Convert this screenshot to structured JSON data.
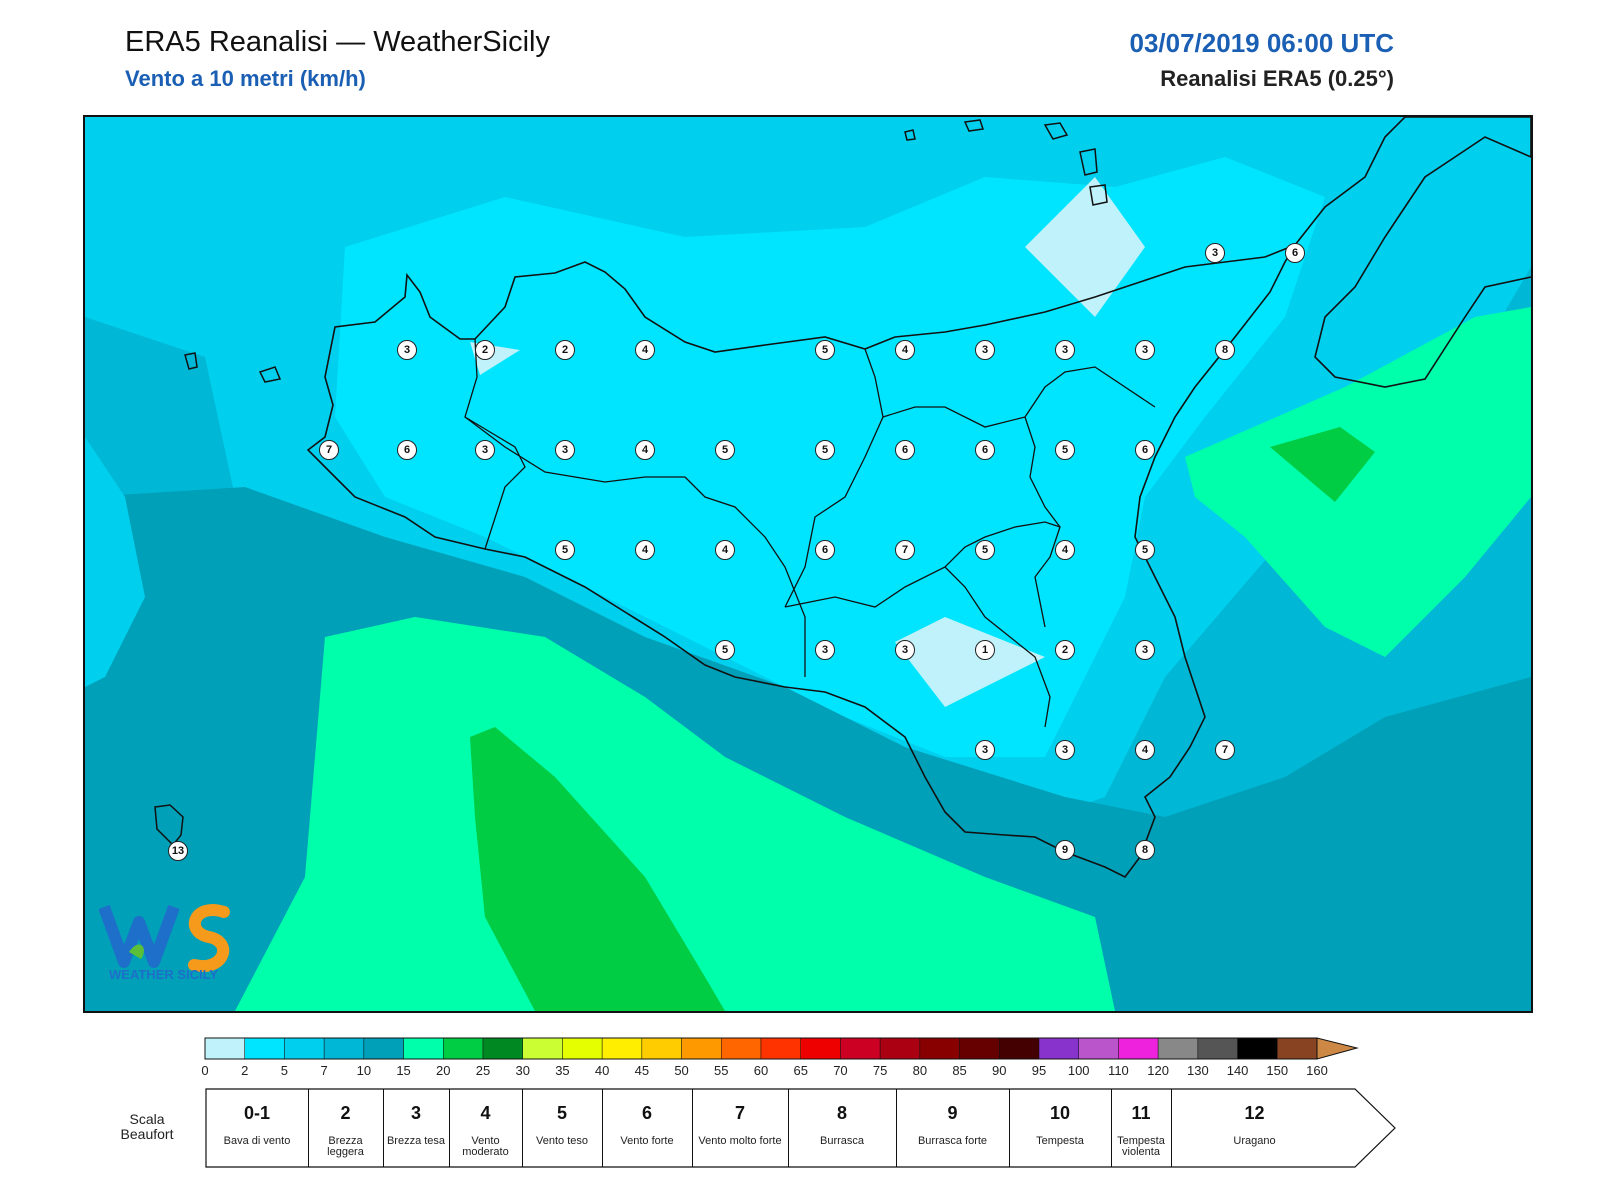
{
  "header": {
    "title": "ERA5 Reanalisi — WeatherSicily",
    "subtitle": "Vento a 10 metri (km/h)",
    "datetime": "03/07/2019 06:00 UTC",
    "source": "Reanalisi ERA5 (0.25°)"
  },
  "logo": {
    "text": "WEATHER SICILY",
    "icon": "weathersicily-logo"
  },
  "map": {
    "region": "Sicily",
    "field": "wind-speed-10m",
    "stations": [
      {
        "v": "3"
      },
      {
        "v": "6"
      },
      {
        "v": "3"
      },
      {
        "v": "2"
      },
      {
        "v": "2"
      },
      {
        "v": "4"
      },
      {
        "v": "5"
      },
      {
        "v": "4"
      },
      {
        "v": "3"
      },
      {
        "v": "3"
      },
      {
        "v": "3"
      },
      {
        "v": "8"
      },
      {
        "v": "7"
      },
      {
        "v": "6"
      },
      {
        "v": "3"
      },
      {
        "v": "3"
      },
      {
        "v": "4"
      },
      {
        "v": "5"
      },
      {
        "v": "5"
      },
      {
        "v": "6"
      },
      {
        "v": "6"
      },
      {
        "v": "5"
      },
      {
        "v": "6"
      },
      {
        "v": "5"
      },
      {
        "v": "4"
      },
      {
        "v": "4"
      },
      {
        "v": "6"
      },
      {
        "v": "7"
      },
      {
        "v": "5"
      },
      {
        "v": "4"
      },
      {
        "v": "5"
      },
      {
        "v": "5"
      },
      {
        "v": "3"
      },
      {
        "v": "3"
      },
      {
        "v": "1"
      },
      {
        "v": "2"
      },
      {
        "v": "3"
      },
      {
        "v": "3"
      },
      {
        "v": "3"
      },
      {
        "v": "4"
      },
      {
        "v": "7"
      },
      {
        "v": "9"
      },
      {
        "v": "8"
      },
      {
        "v": "13"
      }
    ]
  },
  "colorbar": {
    "ticks": [
      "0",
      "2",
      "5",
      "7",
      "10",
      "15",
      "20",
      "25",
      "30",
      "35",
      "40",
      "45",
      "50",
      "55",
      "60",
      "65",
      "70",
      "75",
      "80",
      "85",
      "90",
      "95",
      "100",
      "110",
      "120",
      "130",
      "140",
      "150",
      "160"
    ],
    "colors": [
      "#bff2fb",
      "#00e5ff",
      "#00cfee",
      "#00b8d6",
      "#00a0b8",
      "#00ffaa",
      "#00cc44",
      "#008822",
      "#ccff33",
      "#e6ff00",
      "#ffee00",
      "#ffcc00",
      "#ff9900",
      "#ff6600",
      "#ff3300",
      "#ee0000",
      "#cc0022",
      "#aa0011",
      "#880000",
      "#660000",
      "#440000",
      "#8833cc",
      "#bb55cc",
      "#ee22dd",
      "#888888",
      "#555555",
      "#000000",
      "#884422",
      "#cc8844"
    ]
  },
  "beaufort": {
    "label": "Scala Beaufort",
    "levels": [
      {
        "n": "0-1",
        "desc": "Bava di vento"
      },
      {
        "n": "2",
        "desc": "Brezza leggera"
      },
      {
        "n": "3",
        "desc": "Brezza tesa"
      },
      {
        "n": "4",
        "desc": "Vento moderato"
      },
      {
        "n": "5",
        "desc": "Vento teso"
      },
      {
        "n": "6",
        "desc": "Vento forte"
      },
      {
        "n": "7",
        "desc": "Vento molto forte"
      },
      {
        "n": "8",
        "desc": "Burrasca"
      },
      {
        "n": "9",
        "desc": "Burrasca forte"
      },
      {
        "n": "10",
        "desc": "Tempesta"
      },
      {
        "n": "11",
        "desc": "Tempesta violenta"
      },
      {
        "n": "12",
        "desc": "Uragano"
      }
    ]
  }
}
